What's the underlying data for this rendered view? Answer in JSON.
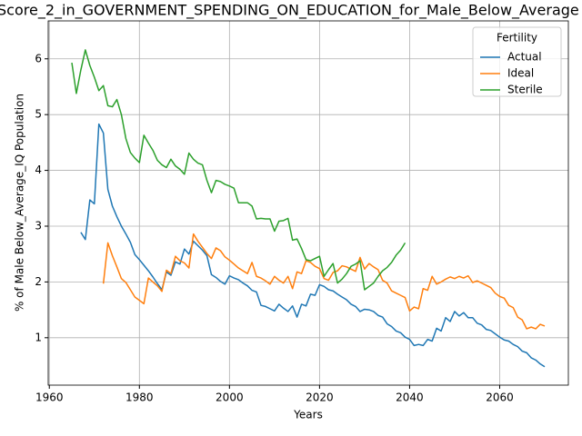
{
  "chart_data": {
    "type": "line",
    "title": "Score_2_in_GOVERNMENT_SPENDING_ON_EDUCATION_for_Male_Below_Average",
    "xlabel": "Years",
    "ylabel": "% of Male Below_Average_IQ Population",
    "legend_title": "Fertility",
    "legend": "upper right",
    "grid": true,
    "x": [
      1965,
      1966,
      1967,
      1968,
      1969,
      1970,
      1971,
      1972,
      1973,
      1974,
      1975,
      1976,
      1977,
      1978,
      1979,
      1980,
      1981,
      1982,
      1983,
      1984,
      1985,
      1986,
      1987,
      1988,
      1989,
      1990,
      1991,
      1992,
      1993,
      1994,
      1995,
      1996,
      1997,
      1998,
      1999,
      2000,
      2001,
      2002,
      2003,
      2004,
      2005,
      2006,
      2007,
      2008,
      2009,
      2010,
      2011,
      2012,
      2013,
      2014,
      2015,
      2016,
      2017,
      2018,
      2019,
      2020,
      2021,
      2022,
      2023,
      2024,
      2025,
      2026,
      2027,
      2028,
      2029,
      2030,
      2031,
      2032,
      2033,
      2034,
      2035,
      2036,
      2037,
      2038,
      2039,
      2040,
      2041,
      2042,
      2043,
      2044,
      2045,
      2046,
      2047,
      2048,
      2049,
      2050,
      2051,
      2052,
      2053,
      2054,
      2055,
      2056,
      2057,
      2058,
      2059,
      2060,
      2061,
      2062,
      2063,
      2064,
      2065,
      2066,
      2067,
      2068,
      2069,
      2070
    ],
    "xlim": [
      1959.75,
      2075.25
    ],
    "xticks": [
      1960,
      1980,
      2000,
      2020,
      2040,
      2060
    ],
    "ylim": [
      0.15,
      6.68
    ],
    "yticks": [
      1,
      2,
      3,
      4,
      5,
      6
    ],
    "series": [
      {
        "name": "Actual",
        "color": "#1f77b4",
        "values": [
          null,
          null,
          2.89,
          2.76,
          3.47,
          3.4,
          4.83,
          4.67,
          3.66,
          3.36,
          3.17,
          3.0,
          2.86,
          2.71,
          2.49,
          2.4,
          2.3,
          2.2,
          2.09,
          1.97,
          1.86,
          2.18,
          2.12,
          2.36,
          2.32,
          2.59,
          2.5,
          2.73,
          2.65,
          2.57,
          2.47,
          2.13,
          2.08,
          2.01,
          1.96,
          2.11,
          2.07,
          2.04,
          1.98,
          1.93,
          1.85,
          1.82,
          1.58,
          1.56,
          1.52,
          1.48,
          1.6,
          1.53,
          1.47,
          1.57,
          1.37,
          1.6,
          1.57,
          1.78,
          1.76,
          1.95,
          1.92,
          1.86,
          1.84,
          1.78,
          1.73,
          1.68,
          1.6,
          1.56,
          1.47,
          1.51,
          1.5,
          1.47,
          1.4,
          1.37,
          1.25,
          1.2,
          1.12,
          1.09,
          1.01,
          0.97,
          0.86,
          0.88,
          0.86,
          0.97,
          0.94,
          1.17,
          1.12,
          1.36,
          1.29,
          1.47,
          1.39,
          1.45,
          1.36,
          1.36,
          1.26,
          1.23,
          1.15,
          1.13,
          1.07,
          1.01,
          0.96,
          0.94,
          0.88,
          0.84,
          0.76,
          0.73,
          0.64,
          0.6,
          0.53,
          0.48
        ]
      },
      {
        "name": "Ideal",
        "color": "#ff7f0e",
        "values": [
          null,
          null,
          null,
          null,
          null,
          null,
          null,
          1.97,
          2.7,
          2.47,
          2.27,
          2.06,
          1.99,
          1.86,
          1.73,
          1.67,
          1.61,
          2.07,
          2.0,
          1.93,
          1.83,
          2.21,
          2.15,
          2.46,
          2.38,
          2.34,
          2.25,
          2.86,
          2.73,
          2.62,
          2.51,
          2.42,
          2.61,
          2.56,
          2.45,
          2.39,
          2.32,
          2.25,
          2.2,
          2.15,
          2.35,
          2.1,
          2.07,
          2.02,
          1.96,
          2.1,
          2.03,
          1.98,
          2.1,
          1.88,
          2.18,
          2.15,
          2.38,
          2.35,
          2.28,
          2.24,
          2.06,
          2.03,
          2.17,
          2.2,
          2.29,
          2.27,
          2.23,
          2.19,
          2.44,
          2.23,
          2.33,
          2.27,
          2.22,
          2.03,
          1.98,
          1.84,
          1.8,
          1.76,
          1.72,
          1.48,
          1.55,
          1.52,
          1.88,
          1.85,
          2.1,
          1.96,
          2.0,
          2.05,
          2.09,
          2.06,
          2.1,
          2.07,
          2.11,
          1.99,
          2.02,
          1.98,
          1.94,
          1.9,
          1.8,
          1.74,
          1.71,
          1.58,
          1.54,
          1.37,
          1.32,
          1.16,
          1.19,
          1.16,
          1.24,
          1.21
        ]
      },
      {
        "name": "Sterile",
        "color": "#2ca02c",
        "values": [
          5.93,
          5.38,
          5.8,
          6.16,
          5.88,
          5.67,
          5.43,
          5.52,
          5.16,
          5.14,
          5.27,
          5.0,
          4.57,
          4.32,
          4.22,
          4.14,
          4.63,
          4.49,
          4.36,
          4.18,
          4.1,
          4.05,
          4.2,
          4.08,
          4.02,
          3.93,
          4.31,
          4.2,
          4.13,
          4.1,
          3.82,
          3.6,
          3.82,
          3.8,
          3.75,
          3.72,
          3.68,
          3.42,
          3.42,
          3.42,
          3.36,
          3.13,
          3.14,
          3.13,
          3.13,
          2.91,
          3.09,
          3.1,
          3.14,
          2.75,
          2.77,
          2.6,
          2.4,
          2.38,
          2.42,
          2.46,
          2.1,
          2.22,
          2.33,
          1.98,
          2.05,
          2.15,
          2.28,
          2.32,
          2.38,
          1.86,
          1.92,
          1.98,
          2.1,
          2.2,
          2.26,
          2.35,
          2.48,
          2.57,
          2.7,
          null,
          null,
          null,
          null,
          null,
          null,
          null,
          null,
          null,
          null,
          null,
          null,
          null,
          null,
          null,
          null,
          null,
          null,
          null,
          null,
          null,
          null,
          null,
          null,
          null,
          null,
          null,
          null,
          null,
          null,
          null
        ]
      }
    ]
  }
}
